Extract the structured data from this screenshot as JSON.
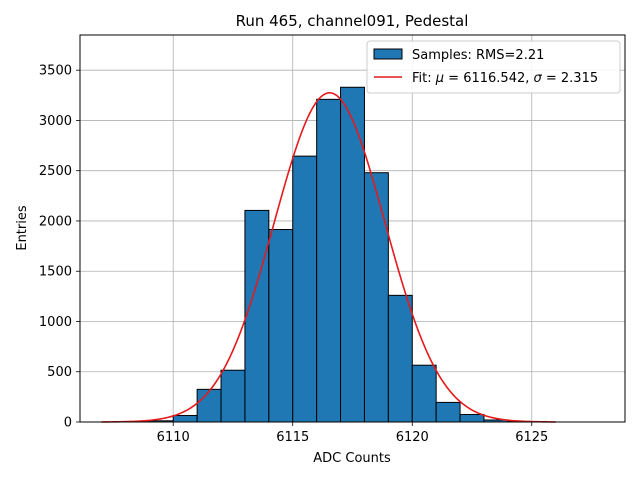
{
  "chart_data": {
    "type": "bar",
    "title": "Run 465, channel091, Pedestal",
    "xlabel": "ADC Counts",
    "ylabel": "Entries",
    "xlim": [
      6106.1,
      6128.9
    ],
    "ylim": [
      0,
      3850
    ],
    "xticks": [
      6110,
      6115,
      6120,
      6125
    ],
    "yticks": [
      0,
      500,
      1000,
      1500,
      2000,
      2500,
      3000,
      3500
    ],
    "grid": true,
    "legend_position": "top-right",
    "histogram": {
      "name": "Samples: RMS=2.21",
      "color": "#1f77b4",
      "bins": [
        {
          "x0": 6108,
          "x1": 6109,
          "count": 3
        },
        {
          "x0": 6109,
          "x1": 6110,
          "count": 12
        },
        {
          "x0": 6110,
          "x1": 6111,
          "count": 65
        },
        {
          "x0": 6111,
          "x1": 6112,
          "count": 325
        },
        {
          "x0": 6112,
          "x1": 6113,
          "count": 515
        },
        {
          "x0": 6113,
          "x1": 6114,
          "count": 2105
        },
        {
          "x0": 6114,
          "x1": 6115,
          "count": 1915
        },
        {
          "x0": 6115,
          "x1": 6116,
          "count": 2645
        },
        {
          "x0": 6116,
          "x1": 6117,
          "count": 3210
        },
        {
          "x0": 6117,
          "x1": 6118,
          "count": 3330
        },
        {
          "x0": 6118,
          "x1": 6119,
          "count": 2480
        },
        {
          "x0": 6119,
          "x1": 6120,
          "count": 1260
        },
        {
          "x0": 6120,
          "x1": 6121,
          "count": 565
        },
        {
          "x0": 6121,
          "x1": 6122,
          "count": 195
        },
        {
          "x0": 6122,
          "x1": 6123,
          "count": 75
        },
        {
          "x0": 6123,
          "x1": 6124,
          "count": 20
        },
        {
          "x0": 6124,
          "x1": 6125,
          "count": 5
        }
      ]
    },
    "fit": {
      "legend_prefix": "Fit: ",
      "mu_symbol": "μ",
      "mu_text": " = 6116.542, ",
      "sigma_symbol": "σ",
      "sigma_text": " = 2.315",
      "color": "#e41a1c",
      "mu": 6116.542,
      "sigma": 2.315,
      "amplitude": 3275,
      "x_range": [
        6107,
        6126
      ]
    }
  }
}
